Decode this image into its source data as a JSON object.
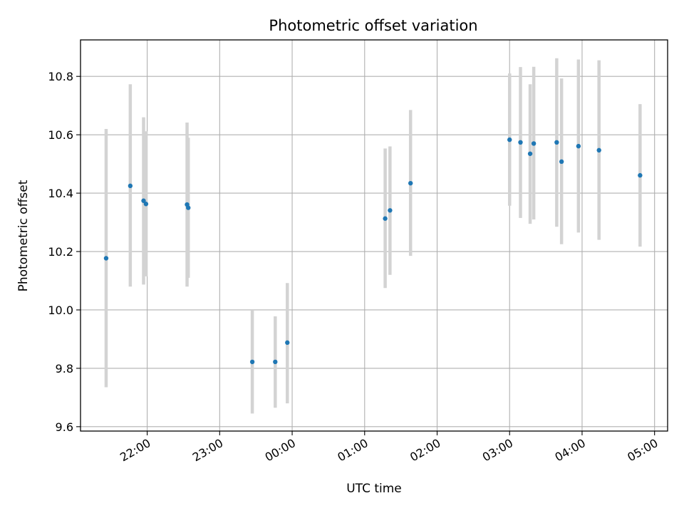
{
  "chart_data": {
    "type": "scatter",
    "title": "Photometric offset variation",
    "xlabel": "UTC time",
    "ylabel": "Photometric offset",
    "x_axis_kind": "time",
    "x_tick_labels": [
      "22:00",
      "23:00",
      "00:00",
      "01:00",
      "02:00",
      "03:00",
      "04:00",
      "05:00"
    ],
    "x_tick_hours": [
      22,
      23,
      24,
      25,
      26,
      27,
      28,
      29
    ],
    "xlim_hours": [
      21.08,
      29.18
    ],
    "ylim": [
      9.585,
      10.925
    ],
    "y_ticks": [
      9.6,
      9.8,
      10.0,
      10.2,
      10.4,
      10.6,
      10.8
    ],
    "y_tick_labels": [
      "9.6",
      "9.8",
      "10.0",
      "10.2",
      "10.4",
      "10.6",
      "10.8"
    ],
    "grid": true,
    "marker_color": "#1f77b4",
    "errorbar_color": "#d3d3d3",
    "points": [
      {
        "t": "21:26",
        "y": 10.177,
        "lo": 9.735,
        "hi": 10.62
      },
      {
        "t": "21:46",
        "y": 10.425,
        "lo": 10.08,
        "hi": 10.773
      },
      {
        "t": "21:57",
        "y": 10.374,
        "lo": 10.087,
        "hi": 10.66
      },
      {
        "t": "21:59",
        "y": 10.363,
        "lo": 10.115,
        "hi": 10.612
      },
      {
        "t": "22:33",
        "y": 10.361,
        "lo": 10.08,
        "hi": 10.642
      },
      {
        "t": "22:34",
        "y": 10.35,
        "lo": 10.11,
        "hi": 10.59
      },
      {
        "t": "23:27",
        "y": 9.822,
        "lo": 9.645,
        "hi": 10.0
      },
      {
        "t": "23:46",
        "y": 9.822,
        "lo": 9.665,
        "hi": 9.978
      },
      {
        "t": "23:56",
        "y": 9.888,
        "lo": 9.68,
        "hi": 10.092
      },
      {
        "t": "01:17",
        "y": 10.313,
        "lo": 10.075,
        "hi": 10.553
      },
      {
        "t": "01:21",
        "y": 10.341,
        "lo": 10.12,
        "hi": 10.56
      },
      {
        "t": "01:38",
        "y": 10.434,
        "lo": 10.185,
        "hi": 10.685
      },
      {
        "t": "03:00",
        "y": 10.583,
        "lo": 10.357,
        "hi": 10.81
      },
      {
        "t": "03:09",
        "y": 10.574,
        "lo": 10.315,
        "hi": 10.832
      },
      {
        "t": "03:17",
        "y": 10.535,
        "lo": 10.295,
        "hi": 10.773
      },
      {
        "t": "03:20",
        "y": 10.57,
        "lo": 10.31,
        "hi": 10.833
      },
      {
        "t": "03:39",
        "y": 10.574,
        "lo": 10.285,
        "hi": 10.862
      },
      {
        "t": "03:43",
        "y": 10.508,
        "lo": 10.225,
        "hi": 10.793
      },
      {
        "t": "03:57",
        "y": 10.561,
        "lo": 10.265,
        "hi": 10.858
      },
      {
        "t": "04:14",
        "y": 10.547,
        "lo": 10.24,
        "hi": 10.855
      },
      {
        "t": "04:48",
        "y": 10.461,
        "lo": 10.217,
        "hi": 10.705
      }
    ]
  }
}
